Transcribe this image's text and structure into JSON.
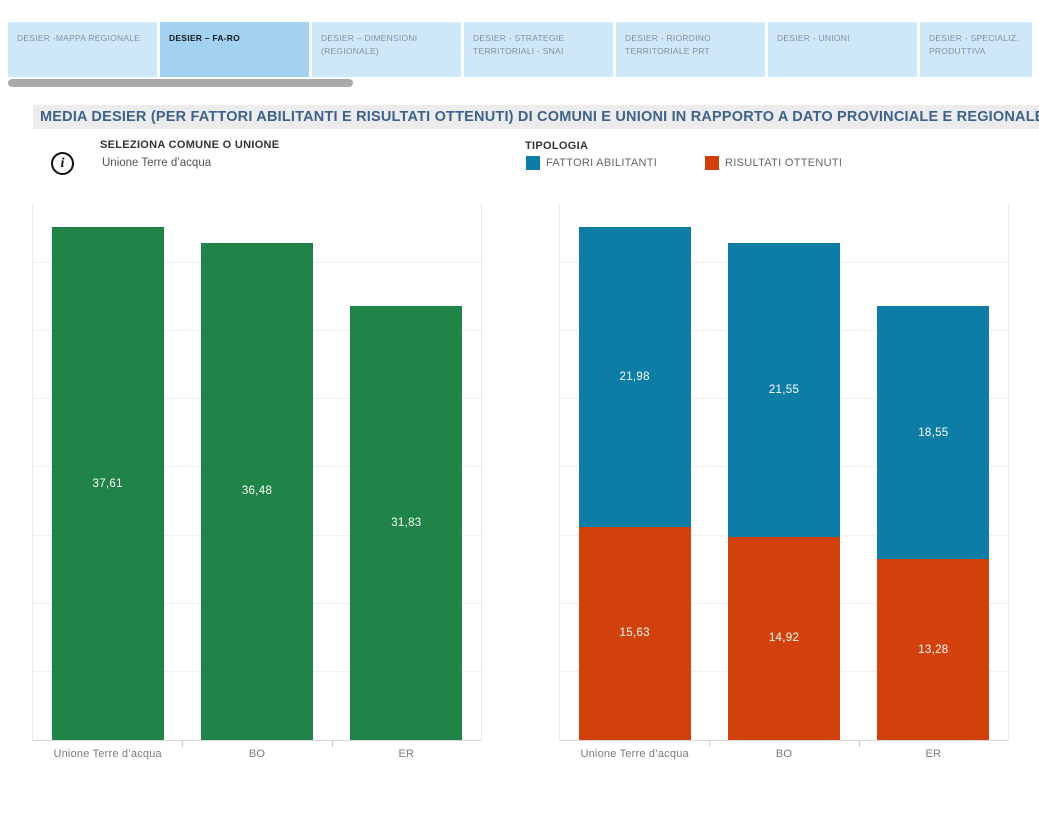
{
  "tabs": [
    {
      "label": "DESIER -MAPPA REGIONALE",
      "active": false
    },
    {
      "label": "DESIER – FA-RO",
      "active": true
    },
    {
      "label": "DESIER – DIMENSIONI (REGIONALE)",
      "active": false
    },
    {
      "label": "DESIER - STRATEGIE TERRITORIALI - SNAI",
      "active": false
    },
    {
      "label": "DESIER - RIORDINO TERRITORIALE PRT",
      "active": false
    },
    {
      "label": "DESIER - UNIONI",
      "active": false
    },
    {
      "label": "DESIER - SPECIALIZ. PRODUTTIVA",
      "active": false
    }
  ],
  "title": "MEDIA DESIER (PER FATTORI ABILITANTI E RISULTATI OTTENUTI) DI COMUNI E UNIONI IN RAPPORTO A DATO PROVINCIALE E REGIONALE",
  "selector": {
    "label": "SELEZIONA COMUNE O UNIONE",
    "value": "Unione Terre d’acqua"
  },
  "legend": {
    "title": "TIPOLOGIA",
    "items": [
      {
        "label": "FATTORI ABILITANTI",
        "color": "#0d7da5"
      },
      {
        "label": "RISULTATI OTTENUTI",
        "color": "#d2410c"
      }
    ]
  },
  "colors": {
    "tab_bg": "#cfe8f9",
    "tab_active_bg": "#a2d2f0",
    "title_bg": "#ececec",
    "title_text": "#3e618e",
    "green": "#208449",
    "blue": "#0d7da5",
    "red": "#d2410c",
    "gridline": "#f0f0f0",
    "scrollbar": "#a9a9a9"
  },
  "chart_data": [
    {
      "type": "bar",
      "categories": [
        "Unione Terre d’acqua",
        "BO",
        "ER"
      ],
      "values": [
        37.61,
        36.48,
        31.83
      ],
      "labels": [
        "37,61",
        "36,48",
        "31,83"
      ],
      "bar_color": "#208449",
      "xlabel": "",
      "ylabel": "",
      "ylim": [
        0,
        39.4
      ],
      "gridline_step": 5,
      "grid": true,
      "axis_tick_labels_visible": false,
      "value_label_position": "center"
    },
    {
      "type": "bar",
      "stacked": true,
      "categories": [
        "Unione Terre d’acqua",
        "BO",
        "ER"
      ],
      "series": [
        {
          "name": "RISULTATI OTTENUTI",
          "color": "#d2410c",
          "values": [
            15.63,
            14.92,
            13.28
          ],
          "labels": [
            "15,63",
            "14,92",
            "13,28"
          ]
        },
        {
          "name": "FATTORI ABILITANTI",
          "color": "#0d7da5",
          "values": [
            21.98,
            21.55,
            18.55
          ],
          "labels": [
            "21,98",
            "21,55",
            "18,55"
          ]
        }
      ],
      "xlabel": "",
      "ylabel": "",
      "ylim": [
        0,
        39.4
      ],
      "gridline_step": 5,
      "grid": true,
      "axis_tick_labels_visible": false,
      "legend_position": "top",
      "value_label_position": "center"
    }
  ]
}
